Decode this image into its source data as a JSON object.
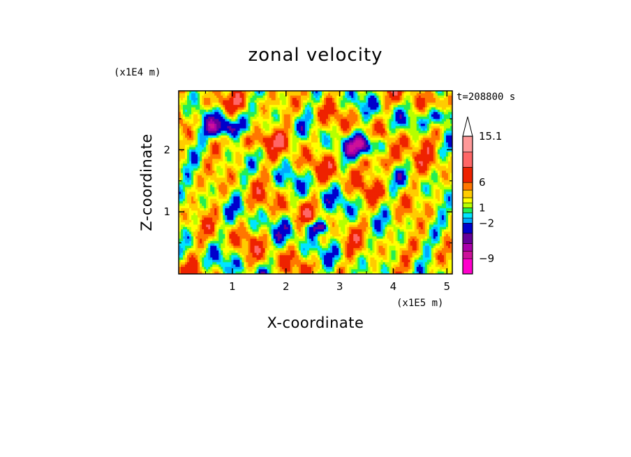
{
  "chart_data": {
    "type": "heatmap",
    "title": "zonal velocity",
    "xlabel": "X-coordinate",
    "ylabel": "Z-coordinate",
    "x_unit": "(x1E5 m)",
    "y_unit": "(x1E4 m)",
    "time_label": "t=208800 s",
    "xlim": [
      0,
      5.1
    ],
    "ylim": [
      0,
      2.95
    ],
    "x_ticks": [
      1,
      2,
      3,
      4,
      5
    ],
    "y_ticks": [
      1,
      2
    ],
    "colorbar": {
      "levels": [
        -12,
        -9,
        -7.5,
        -6,
        -4,
        -2,
        -1,
        0,
        1,
        2,
        3,
        4.5,
        6,
        9,
        12,
        15.1
      ],
      "colors": [
        "#ff00cc",
        "#cc1199",
        "#aa00aa",
        "#660099",
        "#0000cc",
        "#00a8ff",
        "#00e5ff",
        "#22ee55",
        "#b6ff00",
        "#ffff00",
        "#ffcc00",
        "#ff7700",
        "#ee2200",
        "#ff6666",
        "#ff9999",
        "#ffcccc"
      ],
      "tick_labels": [
        {
          "value": 15.1,
          "label": "15.1"
        },
        {
          "value": 6,
          "label": "6"
        },
        {
          "value": 1,
          "label": "1"
        },
        {
          "value": -2,
          "label": "−2"
        },
        {
          "value": -9,
          "label": "−9"
        }
      ],
      "extend": "max"
    }
  }
}
